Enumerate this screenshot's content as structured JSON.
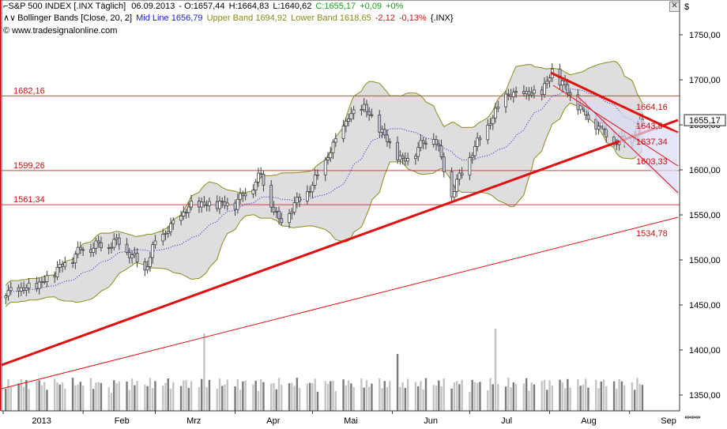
{
  "header": {
    "line1": {
      "symbol": "S&P 500 INDEX [.INX  Täglich]",
      "date": "06.09.2013",
      "open": "- O:1657,44",
      "high": "H:1664,83",
      "low": "L:1640,62",
      "close": "C:1655,17",
      "change": "+0,09",
      "change_pct": "+0%"
    },
    "line2": {
      "indicator": "Bollinger Bands [Close, 20, 2]",
      "mid": "Mid Line 1656,79",
      "upper": "Upper Band 1694,92",
      "lower": "Lower Band 1618,65",
      "chg": "-2,12",
      "chg_pct": "-0,13%",
      "ref": "{.INX}"
    },
    "line3": {
      "source": "© www.tradesignalonline.com"
    }
  },
  "colors": {
    "up": "#16a316",
    "down": "#d01010",
    "mid_line": "#1a1ad8",
    "band_line": "#8a8a1a",
    "band_fill": "#d8d8d8",
    "support": "#e01010",
    "level_line": "#d04040",
    "candle_body": "#c8c8dc",
    "candle_outline": "#404040",
    "price_box_border": "#222222",
    "volume_dark": "#7a7a7a",
    "volume_light": "#c4c4c4"
  },
  "price_axis": {
    "currency_symbol": "$",
    "last_price_label": "1655,17",
    "ticks": [
      "1750,00",
      "1700,00",
      "1650,00",
      "1600,00",
      "1550,00",
      "1500,00",
      "1450,00",
      "1400,00",
      "1350,00"
    ],
    "tick_values": [
      1750,
      1700,
      1650,
      1600,
      1550,
      1500,
      1450,
      1400,
      1350
    ]
  },
  "time_axis": {
    "labels": [
      "2013",
      "Feb",
      "Mrz",
      "Apr",
      "Mai",
      "Jun",
      "Jul",
      "Aug",
      "Sep"
    ]
  },
  "level_labels": {
    "h1": "1682,16",
    "h2": "1599,26",
    "h3": "1561,34",
    "l1": "1664,16",
    "l2": "1643,5",
    "l3": "1637,34",
    "l4": "1603,33",
    "l5": "1534,78"
  },
  "chart_data": {
    "type": "candlestick",
    "horizontal_levels": [
      1682.16,
      1599.26,
      1561.34
    ],
    "ylim": [
      1330,
      1765
    ],
    "x_start": "2013-01-01",
    "x_end": "2013-09-10",
    "grid": false,
    "series_close_approx": [
      {
        "date": "2013-01-02",
        "close": 1462
      },
      {
        "date": "2013-01-15",
        "close": 1472
      },
      {
        "date": "2013-02-01",
        "close": 1513
      },
      {
        "date": "2013-02-15",
        "close": 1519
      },
      {
        "date": "2013-02-25",
        "close": 1488
      },
      {
        "date": "2013-03-01",
        "close": 1518
      },
      {
        "date": "2013-03-15",
        "close": 1560
      },
      {
        "date": "2013-04-01",
        "close": 1562
      },
      {
        "date": "2013-04-11",
        "close": 1593
      },
      {
        "date": "2013-04-18",
        "close": 1541
      },
      {
        "date": "2013-05-01",
        "close": 1582
      },
      {
        "date": "2013-05-15",
        "close": 1658
      },
      {
        "date": "2013-05-21",
        "close": 1669
      },
      {
        "date": "2013-06-05",
        "close": 1608
      },
      {
        "date": "2013-06-17",
        "close": 1639
      },
      {
        "date": "2013-06-24",
        "close": 1573
      },
      {
        "date": "2013-07-01",
        "close": 1614
      },
      {
        "date": "2013-07-15",
        "close": 1682
      },
      {
        "date": "2013-07-29",
        "close": 1685
      },
      {
        "date": "2013-08-02",
        "close": 1709
      },
      {
        "date": "2013-08-15",
        "close": 1661
      },
      {
        "date": "2013-08-27",
        "close": 1630
      },
      {
        "date": "2013-09-03",
        "close": 1639
      },
      {
        "date": "2013-09-06",
        "close": 1655.17
      }
    ],
    "last": {
      "date": "2013-09-06",
      "open": 1657.44,
      "high": 1664.83,
      "low": 1640.62,
      "close": 1655.17
    },
    "bollinger": {
      "period": 20,
      "mult": 2,
      "mid": 1656.79,
      "upper": 1694.92,
      "lower": 1618.65
    }
  }
}
